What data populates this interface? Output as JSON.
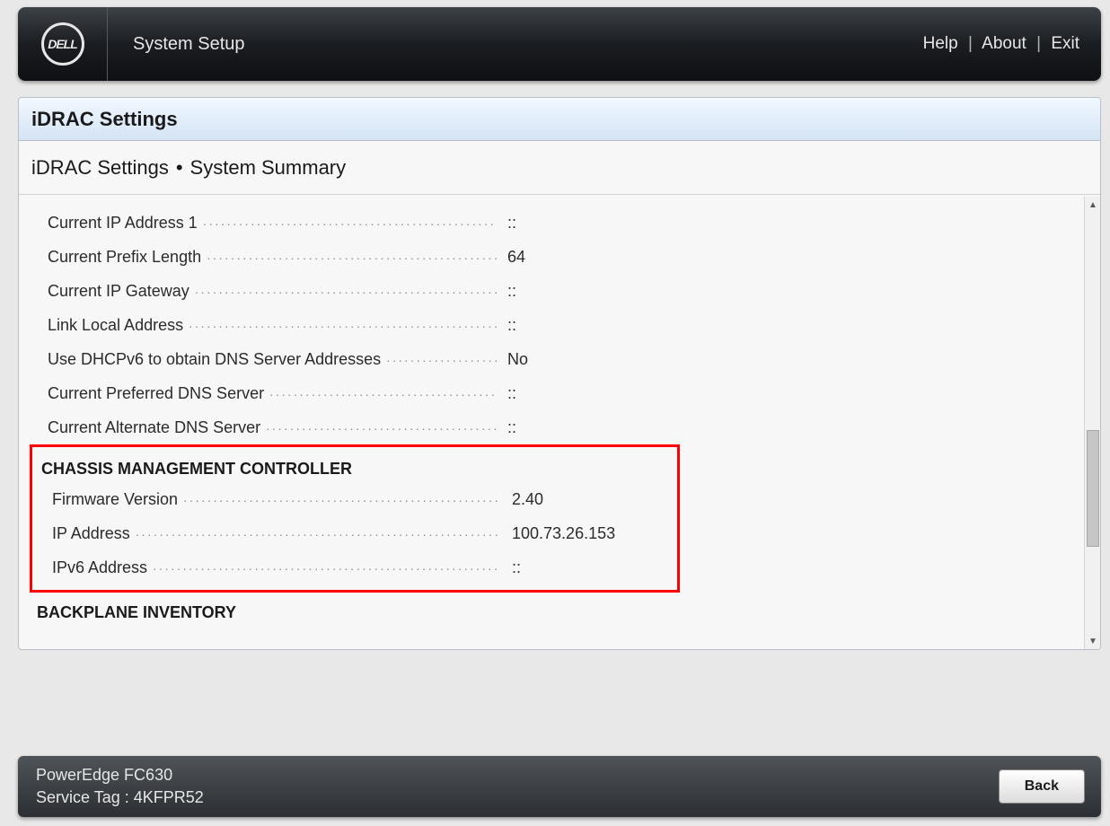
{
  "header": {
    "logo_text": "DELL",
    "app_title": "System Setup",
    "links": {
      "help": "Help",
      "about": "About",
      "exit": "Exit"
    }
  },
  "main": {
    "panel_title": "iDRAC Settings",
    "breadcrumb": {
      "root": "iDRAC Settings",
      "sep": "•",
      "leaf": "System Summary"
    },
    "network_rows": [
      {
        "label": "Current IP Address 1",
        "value": "::"
      },
      {
        "label": "Current Prefix Length",
        "value": "64"
      },
      {
        "label": "Current IP Gateway",
        "value": "::"
      },
      {
        "label": "Link Local Address",
        "value": "::"
      },
      {
        "label": "Use DHCPv6 to obtain DNS Server Addresses",
        "value": "No"
      },
      {
        "label": "Current Preferred DNS Server",
        "value": "::"
      },
      {
        "label": "Current Alternate DNS Server",
        "value": "::"
      }
    ],
    "cmc": {
      "header": "CHASSIS MANAGEMENT CONTROLLER",
      "rows": [
        {
          "label": "Firmware Version",
          "value": "2.40"
        },
        {
          "label": "IP Address",
          "value": "100.73.26.153"
        },
        {
          "label": "IPv6 Address",
          "value": "::"
        }
      ]
    },
    "backplane": {
      "header": "BACKPLANE INVENTORY"
    }
  },
  "footer": {
    "model": "PowerEdge FC630",
    "service_tag_label": "Service Tag :",
    "service_tag_value": "4KFPR52",
    "back_label": "Back"
  },
  "colors": {
    "highlight_border": "#ff0000",
    "header_gradient_top": "#3d4248",
    "header_gradient_bottom": "#0e1013",
    "panel_bg": "#f7f7f7",
    "title_gradient_top": "#f2f8ff",
    "title_gradient_bottom": "#d4e4f4"
  }
}
